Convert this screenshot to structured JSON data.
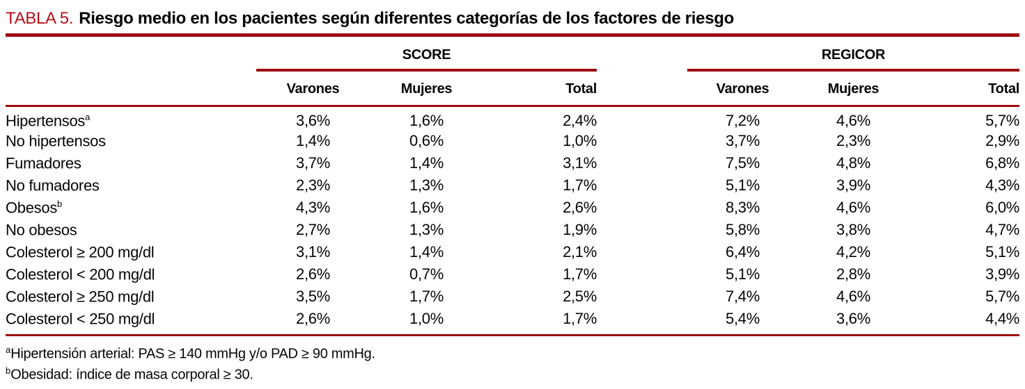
{
  "title": {
    "tag": "TABLA 5.",
    "text": "Riesgo medio en los pacientes según diferentes categorías de los factores de riesgo"
  },
  "colors": {
    "rule_red": "#9e0b0f",
    "title_red": "#b5121b"
  },
  "table": {
    "groups": [
      {
        "label": "SCORE"
      },
      {
        "label": "REGICOR"
      }
    ],
    "columns": [
      "Varones",
      "Mujeres",
      "Total",
      "Varones",
      "Mujeres",
      "Total"
    ],
    "rows": [
      {
        "label": "Hipertensos",
        "sup": "a",
        "values": [
          "3,6%",
          "1,6%",
          "2,4%",
          "7,2%",
          "4,6%",
          "5,7%"
        ]
      },
      {
        "label": "No hipertensos",
        "sup": "",
        "values": [
          "1,4%",
          "0,6%",
          "1,0%",
          "3,7%",
          "2,3%",
          "2,9%"
        ]
      },
      {
        "label": "Fumadores",
        "sup": "",
        "values": [
          "3,7%",
          "1,4%",
          "3,1%",
          "7,5%",
          "4,8%",
          "6,8%"
        ]
      },
      {
        "label": "No fumadores",
        "sup": "",
        "values": [
          "2,3%",
          "1,3%",
          "1,7%",
          "5,1%",
          "3,9%",
          "4,3%"
        ]
      },
      {
        "label": "Obesos",
        "sup": "b",
        "values": [
          "4,3%",
          "1,6%",
          "2,6%",
          "8,3%",
          "4,6%",
          "6,0%"
        ]
      },
      {
        "label": "No obesos",
        "sup": "",
        "values": [
          "2,7%",
          "1,3%",
          "1,9%",
          "5,8%",
          "3,8%",
          "4,7%"
        ]
      },
      {
        "label": "Colesterol ≥ 200 mg/dl",
        "sup": "",
        "values": [
          "3,1%",
          "1,4%",
          "2,1%",
          "6,4%",
          "4,2%",
          "5,1%"
        ]
      },
      {
        "label": "Colesterol < 200 mg/dl",
        "sup": "",
        "values": [
          "2,6%",
          "0,7%",
          "1,7%",
          "5,1%",
          "2,8%",
          "3,9%"
        ]
      },
      {
        "label": "Colesterol ≥ 250 mg/dl",
        "sup": "",
        "values": [
          "3,5%",
          "1,7%",
          "2,5%",
          "7,4%",
          "4,6%",
          "5,7%"
        ]
      },
      {
        "label": "Colesterol < 250 mg/dl",
        "sup": "",
        "values": [
          "2,6%",
          "1,0%",
          "1,7%",
          "5,4%",
          "3,6%",
          "4,4%"
        ]
      }
    ]
  },
  "footnotes": [
    {
      "sup": "a",
      "text": "Hipertensión arterial: PAS ≥ 140 mmHg y/o PAD ≥ 90 mmHg."
    },
    {
      "sup": "b",
      "text": "Obesidad: índice de masa corporal ≥ 30."
    }
  ],
  "chart_data": {
    "type": "table",
    "title": "TABLA 5. Riesgo medio en los pacientes según diferentes categorías de los factores de riesgo",
    "column_groups": [
      "SCORE",
      "REGICOR"
    ],
    "columns": [
      "SCORE Varones",
      "SCORE Mujeres",
      "SCORE Total",
      "REGICOR Varones",
      "REGICOR Mujeres",
      "REGICOR Total"
    ],
    "categories": [
      "Hipertensos",
      "No hipertensos",
      "Fumadores",
      "No fumadores",
      "Obesos",
      "No obesos",
      "Colesterol ≥ 200 mg/dl",
      "Colesterol < 200 mg/dl",
      "Colesterol ≥ 250 mg/dl",
      "Colesterol < 250 mg/dl"
    ],
    "series": [
      {
        "name": "SCORE Varones",
        "values": [
          3.6,
          1.4,
          3.7,
          2.3,
          4.3,
          2.7,
          3.1,
          2.6,
          3.5,
          2.6
        ]
      },
      {
        "name": "SCORE Mujeres",
        "values": [
          1.6,
          0.6,
          1.4,
          1.3,
          1.6,
          1.3,
          1.4,
          0.7,
          1.7,
          1.0
        ]
      },
      {
        "name": "SCORE Total",
        "values": [
          2.4,
          1.0,
          3.1,
          1.7,
          2.6,
          1.9,
          2.1,
          1.7,
          2.5,
          1.7
        ]
      },
      {
        "name": "REGICOR Varones",
        "values": [
          7.2,
          3.7,
          7.5,
          5.1,
          8.3,
          5.8,
          6.4,
          5.1,
          7.4,
          5.4
        ]
      },
      {
        "name": "REGICOR Mujeres",
        "values": [
          4.6,
          2.3,
          4.8,
          3.9,
          4.6,
          3.8,
          4.2,
          2.8,
          4.6,
          3.6
        ]
      },
      {
        "name": "REGICOR Total",
        "values": [
          5.7,
          2.9,
          6.8,
          4.3,
          6.0,
          4.7,
          5.1,
          3.9,
          5.7,
          4.4
        ]
      }
    ],
    "unit": "%"
  }
}
